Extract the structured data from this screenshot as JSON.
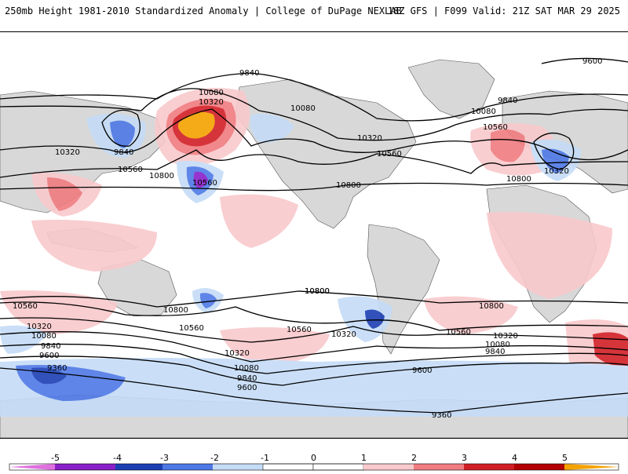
{
  "header": {
    "left_title": "250mb Height 1981-2010 Standardized Anomaly | College of DuPage NEXLAB",
    "right_title": "18Z GFS | F099 Valid: 21Z SAT MAR 29 2025"
  },
  "colors": {
    "neg5": "#e070e0",
    "neg4": "#8a1fc9",
    "neg3": "#1c3fb3",
    "neg2": "#4e78e6",
    "neg1": "#c5dcf7",
    "zero": "#ffffff",
    "pos1": "#f9c9cc",
    "pos2": "#f07c80",
    "pos3": "#d21f26",
    "pos4": "#b30000",
    "pos5": "#f5a300",
    "land": "#d8d8d8",
    "contour": "#000000"
  },
  "contour_labels": {
    "l9600a": "9600",
    "l9840a": "9840",
    "l9840b": "9840",
    "l10080a": "10080",
    "l10320a": "10320",
    "l10080b": "10080",
    "l10560a": "10560",
    "l10080c": "10080",
    "l10320b": "10320",
    "l10560b": "10560",
    "l10800a": "10800",
    "l10800b": "10800",
    "l10320c": "10320",
    "l9840c": "9840",
    "l10560c": "10560",
    "l10800c": "10800",
    "l10320d": "10320",
    "l10560d": "10560",
    "l10800d": "10800",
    "s10560a": "10560",
    "s10320a": "10320",
    "s10080a": "10080",
    "s9840a": "9840",
    "s9600a": "9600",
    "s9360a": "9360",
    "s10800a": "10800",
    "s10560b": "10560",
    "s10320b": "10320",
    "s10080b": "10080",
    "s9840b": "9840",
    "s9600b": "9600",
    "s10800b": "10800",
    "s10560c": "10560",
    "s10320c": "10320",
    "s10560d": "10560",
    "s10800c": "10800",
    "s10320d": "10320",
    "s10080c": "10080",
    "s9840d": "9840",
    "s9600c": "9600",
    "s9360b": "9360"
  },
  "colorbar": {
    "ticks": [
      "-5",
      "-4",
      "-3",
      "-2",
      "-1",
      "0",
      "1",
      "2",
      "3",
      "4",
      "5"
    ]
  }
}
